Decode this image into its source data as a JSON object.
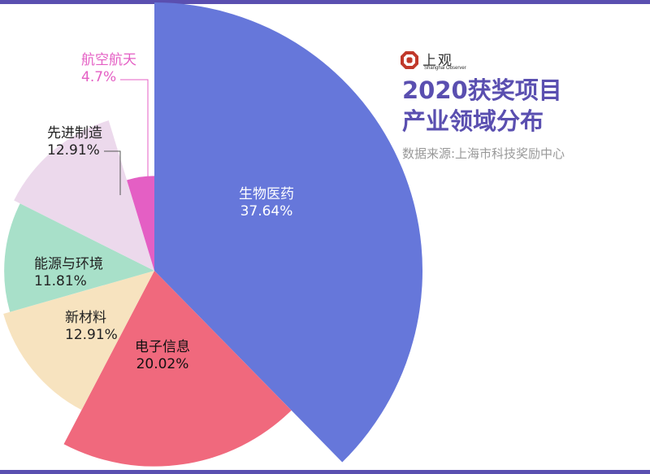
{
  "title_line1": "2020获奖项目",
  "title_line2": "产业领域分布",
  "source": "数据来源:上海市科技奖励中心",
  "logo": {
    "text": "上观",
    "subtitle": "Shanghai Observer"
  },
  "colors": {
    "frame": "#5a4fb0",
    "title": "#5a4fb0",
    "leader": "#555555"
  },
  "chart_data": {
    "type": "pie",
    "subtype": "rose",
    "title": "2020获奖项目 产业领域分布",
    "slices": [
      {
        "name": "生物医药",
        "value": 37.64,
        "label": "37.64%",
        "color": "#6677da"
      },
      {
        "name": "电子信息",
        "value": 20.02,
        "label": "20.02%",
        "color": "#f0697d"
      },
      {
        "name": "新材料",
        "value": 12.91,
        "label": "12.91%",
        "color": "#f7e3bf"
      },
      {
        "name": "能源与环境",
        "value": 11.81,
        "label": "11.81%",
        "color": "#a8e0c9"
      },
      {
        "name": "先进制造",
        "value": 12.91,
        "label": "12.91%",
        "color": "#ecd9ec"
      },
      {
        "name": "航空航天",
        "value": 4.7,
        "label": "4.7%",
        "color": "#e45fc4"
      }
    ]
  }
}
